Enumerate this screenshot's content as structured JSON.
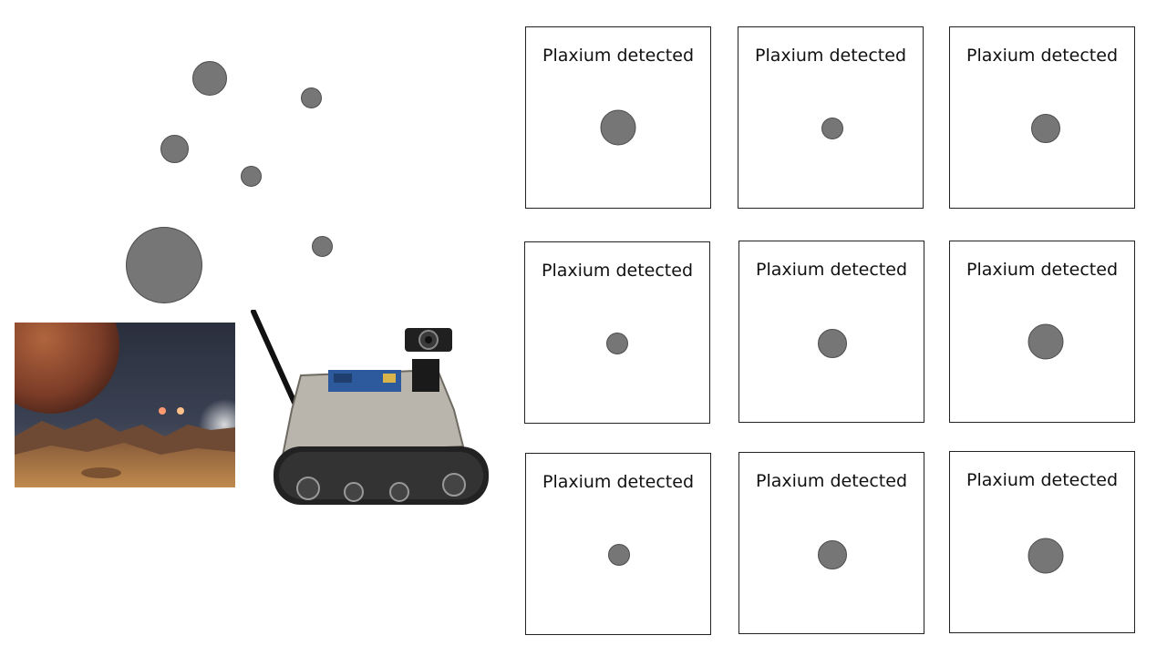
{
  "colors": {
    "sample_fill": "#767676",
    "sample_stroke": "#4d4d4d",
    "panel_border": "#222222"
  },
  "panels": [
    {
      "label": "Plaxium detected"
    },
    {
      "label": "Plaxium detected"
    },
    {
      "label": "Plaxium detected"
    },
    {
      "label": "Plaxium detected"
    },
    {
      "label": "Plaxium detected"
    },
    {
      "label": "Plaxium detected"
    },
    {
      "label": "Plaxium detected"
    },
    {
      "label": "Plaxium detected"
    },
    {
      "label": "Plaxium detected"
    }
  ],
  "scene": {
    "planet_image": "alien-planet-landscape",
    "rover_image": "tracked-rover-with-camera"
  }
}
